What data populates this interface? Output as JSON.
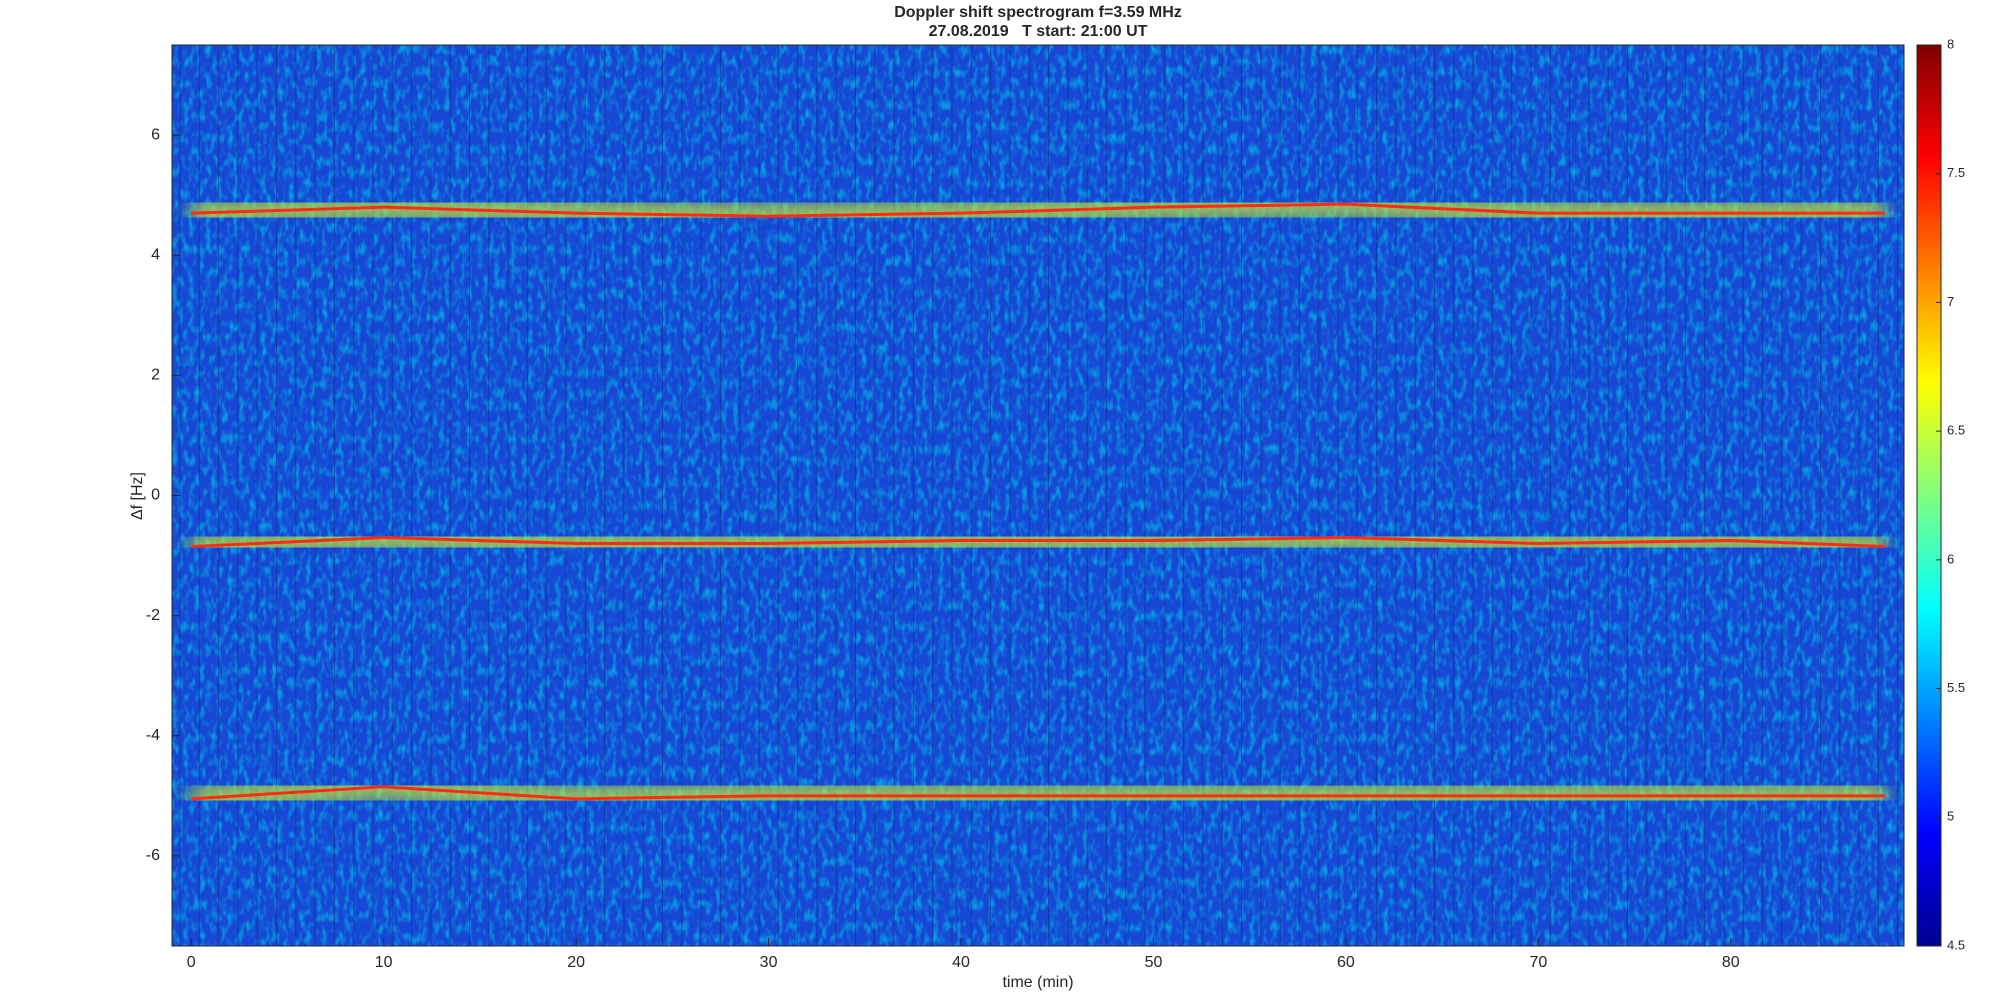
{
  "chart_data": {
    "type": "spectrogram",
    "title": "Doppler shift spectrogram f=3.59 MHz",
    "subtitle": "27.08.2019   T start: 21:00 UT",
    "x_label": "time (min)",
    "y_label": "Δf [Hz]",
    "xlim": [
      -1,
      89
    ],
    "xticks": [
      0,
      10,
      20,
      30,
      40,
      50,
      60,
      70,
      80
    ],
    "ylim": [
      -7.5,
      7.5
    ],
    "yticks": [
      -6,
      -4,
      -2,
      0,
      2,
      4,
      6
    ],
    "colormap": "jet",
    "clim": [
      4.5,
      8
    ],
    "cticks": [
      4.5,
      5,
      5.5,
      6,
      6.5,
      7,
      7.5,
      8
    ],
    "x": [
      0,
      10,
      20,
      30,
      40,
      50,
      60,
      70,
      80,
      88
    ],
    "series": [
      {
        "color": "#ff2a1a",
        "values": [
          4.7,
          4.8,
          4.7,
          4.65,
          4.7,
          4.8,
          4.85,
          4.7,
          4.7,
          4.7
        ]
      },
      {
        "color": "#ff2a1a",
        "values": [
          -0.85,
          -0.7,
          -0.8,
          -0.8,
          -0.75,
          -0.75,
          -0.7,
          -0.8,
          -0.75,
          -0.85
        ]
      },
      {
        "color": "#ff2a1a",
        "values": [
          -5.05,
          -4.85,
          -5.05,
          -5.0,
          -5.0,
          -5.0,
          -5.0,
          -5.0,
          -5.0,
          -5.0
        ]
      }
    ]
  }
}
